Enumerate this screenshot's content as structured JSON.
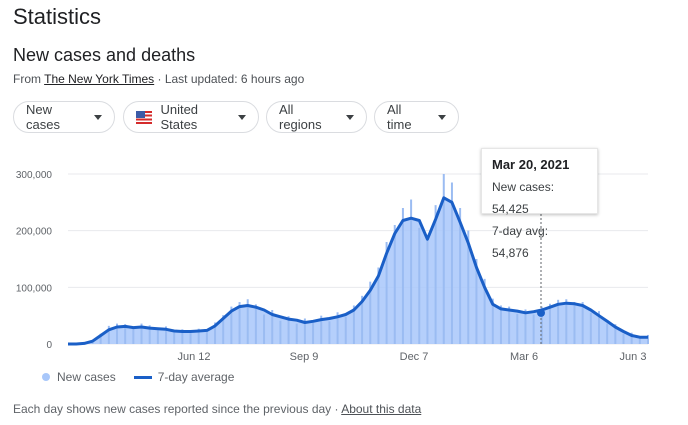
{
  "page": {
    "title": "Statistics",
    "subtitle": "New cases and deaths",
    "source_prefix": "From ",
    "source_name": "The New York Times",
    "source_suffix": " · Last updated: 6 hours ago"
  },
  "filters": {
    "cases_label": "New cases",
    "country_label": "United States",
    "regions_label": "All regions",
    "time_label": "All time"
  },
  "tooltip": {
    "date": "Mar 20, 2021",
    "new_cases_text": "New cases: 54,425",
    "avg_text": "7-day avg: 54,876"
  },
  "legend": {
    "new_cases": "New cases",
    "avg": "7-day average"
  },
  "footer": {
    "text": "Each day shows new cases reported since the previous day",
    "separator": " · ",
    "link": "About this data"
  },
  "colors": {
    "bars": "#a8c7fa",
    "avg_line": "#1a5fc7"
  },
  "chart_data": {
    "type": "area",
    "y_ticks": [
      "0",
      "100,000",
      "200,000",
      "300,000"
    ],
    "x_ticks": [
      "Jun 12",
      "Sep 9",
      "Dec 7",
      "Mar 6",
      "Jun 3"
    ],
    "ylim": [
      0,
      310000
    ],
    "grid": true,
    "series": [
      {
        "name": "7-day average",
        "values": [
          0,
          0,
          1000,
          5000,
          15000,
          25000,
          30000,
          31000,
          29000,
          30000,
          28000,
          27000,
          26000,
          23000,
          22000,
          22000,
          23000,
          24000,
          32000,
          45000,
          58000,
          66000,
          68000,
          65000,
          60000,
          52000,
          48000,
          44000,
          42000,
          38000,
          40000,
          43000,
          45000,
          48000,
          52000,
          60000,
          75000,
          95000,
          120000,
          160000,
          195000,
          218000,
          222000,
          218000,
          185000,
          220000,
          258000,
          250000,
          215000,
          178000,
          135000,
          100000,
          70000,
          62000,
          60000,
          58000,
          55000,
          57000,
          60000,
          65000,
          70000,
          72000,
          71000,
          68000,
          60000,
          50000,
          40000,
          30000,
          22000,
          15000,
          12000,
          12000
        ]
      },
      {
        "name": "New cases",
        "values": [
          0,
          0,
          2000,
          7000,
          18000,
          32000,
          36000,
          35000,
          27000,
          36000,
          33000,
          24000,
          31000,
          20000,
          26000,
          19000,
          27000,
          21000,
          38000,
          51000,
          66000,
          74000,
          79000,
          70000,
          52000,
          60000,
          41000,
          49000,
          36000,
          45000,
          37000,
          50000,
          40000,
          56000,
          48000,
          68000,
          85000,
          110000,
          135000,
          180000,
          210000,
          240000,
          255000,
          205000,
          190000,
          245000,
          300000,
          285000,
          240000,
          200000,
          150000,
          115000,
          80000,
          68000,
          66000,
          53000,
          61000,
          52000,
          66000,
          71000,
          78000,
          79000,
          74000,
          74000,
          55000,
          58000,
          36000,
          35000,
          18000,
          20000,
          10000,
          16000
        ]
      }
    ],
    "highlight": {
      "date": "Mar 20, 2021",
      "new_cases": 54425,
      "avg": 54876
    }
  }
}
